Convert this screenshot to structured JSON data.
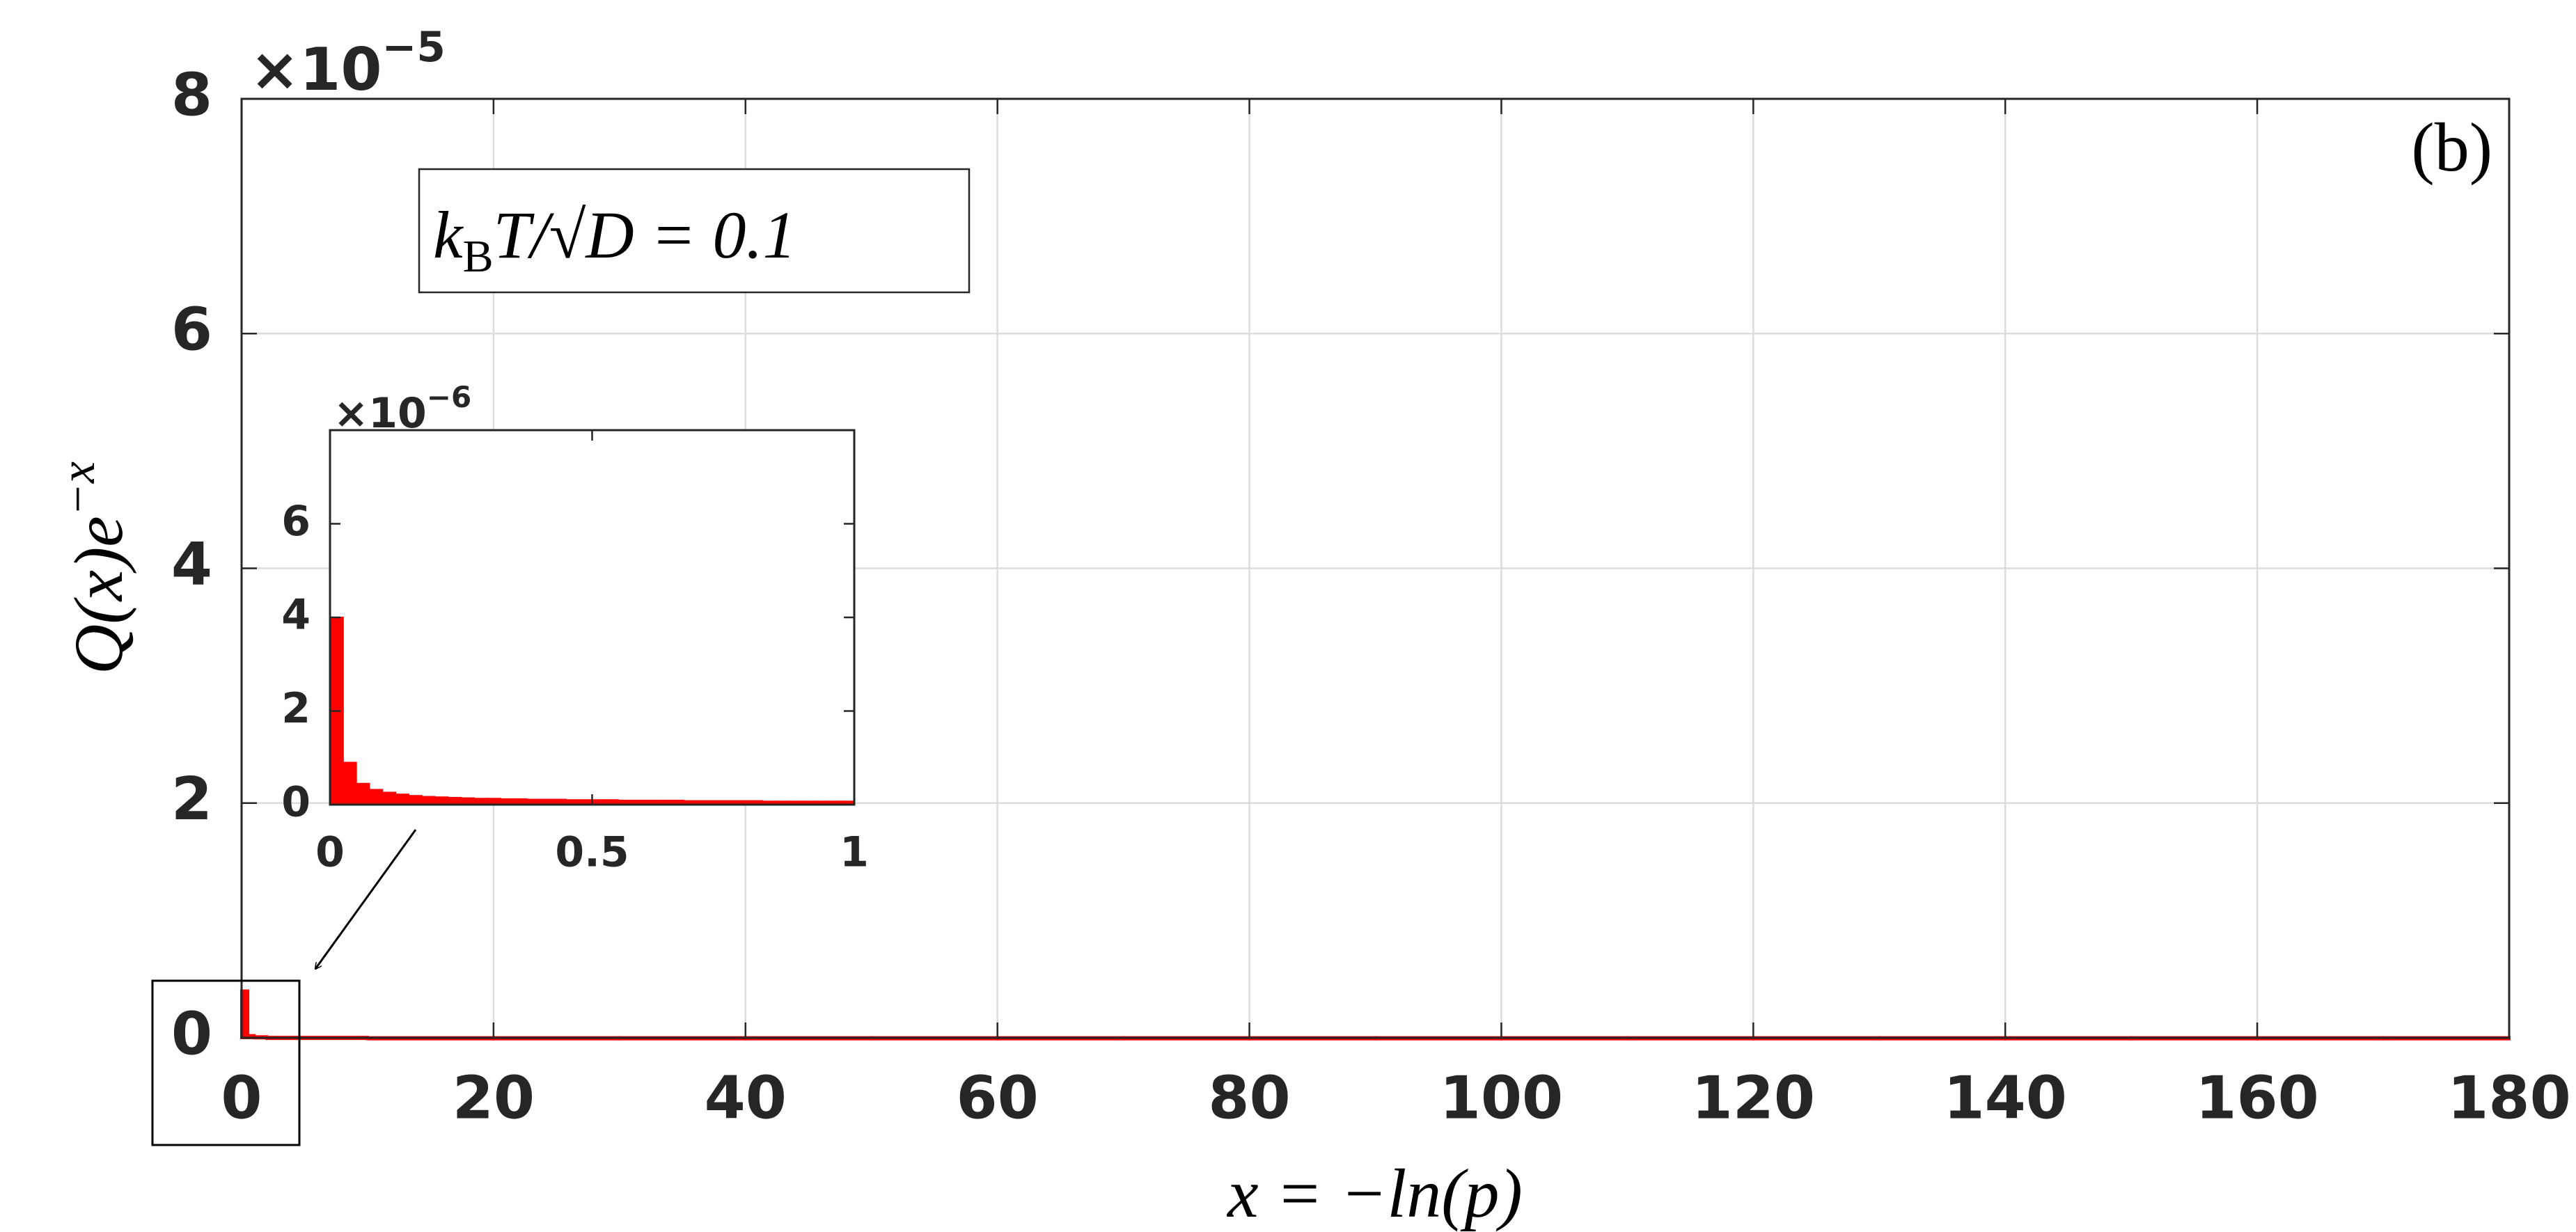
{
  "chart_data": [
    {
      "type": "histogram",
      "exponent": {
        "base": "×10",
        "power": "−5"
      },
      "xlabel": {
        "text": "x = −ln(p)"
      },
      "ylabel": {
        "base": "Q(x)e",
        "power": "−x"
      },
      "annotation": {
        "parts": [
          "k",
          "B",
          "T/√D = 0.1"
        ]
      },
      "panel_label": "(b)",
      "bins": [
        0,
        0.5,
        1,
        2,
        10,
        20,
        30,
        40,
        50,
        60,
        70,
        80,
        90,
        100,
        110,
        120,
        130,
        140,
        150,
        160,
        170,
        180
      ],
      "values": [
        0.4,
        0.02,
        0.01,
        0.005,
        0.002,
        0.002,
        0.002,
        0.002,
        0.002,
        0.002,
        0.002,
        0.002,
        0.002,
        0.002,
        0.002,
        0.002,
        0.002,
        0.002,
        0.002,
        0.002,
        0.002
      ],
      "color": "#ff0000",
      "xlim": [
        0,
        180
      ],
      "ylim": [
        0,
        8
      ],
      "xticks": [
        0,
        20,
        40,
        60,
        80,
        100,
        120,
        140,
        160,
        180
      ],
      "yticks": [
        0,
        2,
        4,
        6,
        8
      ],
      "grid": true
    },
    {
      "type": "histogram",
      "exponent": {
        "base": "×10",
        "power": "−6"
      },
      "bins": [
        0,
        0.025,
        0.05,
        0.075,
        0.1,
        0.125,
        0.15,
        0.175,
        0.2,
        0.225,
        0.25,
        0.275,
        0.3,
        0.325,
        0.35,
        0.375,
        0.4,
        0.425,
        0.45,
        0.475,
        0.5,
        0.525,
        0.55,
        0.575,
        0.6,
        0.625,
        0.65,
        0.675,
        0.7,
        0.725,
        0.75,
        0.775,
        0.8,
        0.825,
        0.85,
        0.875,
        0.9,
        0.925,
        0.95,
        0.975,
        1
      ],
      "values": [
        4.0,
        0.9,
        0.45,
        0.32,
        0.26,
        0.22,
        0.19,
        0.17,
        0.16,
        0.15,
        0.14,
        0.13,
        0.13,
        0.12,
        0.12,
        0.11,
        0.11,
        0.11,
        0.1,
        0.1,
        0.1,
        0.1,
        0.09,
        0.09,
        0.09,
        0.09,
        0.09,
        0.08,
        0.08,
        0.08,
        0.08,
        0.08,
        0.08,
        0.07,
        0.07,
        0.07,
        0.07,
        0.07,
        0.07,
        0.07
      ],
      "color": "#ff0000",
      "xlim": [
        0,
        1
      ],
      "ylim": [
        0,
        8
      ],
      "xticks": [
        0,
        0.5,
        1
      ],
      "yticks": [
        0,
        2,
        4,
        6
      ],
      "grid": false
    }
  ]
}
